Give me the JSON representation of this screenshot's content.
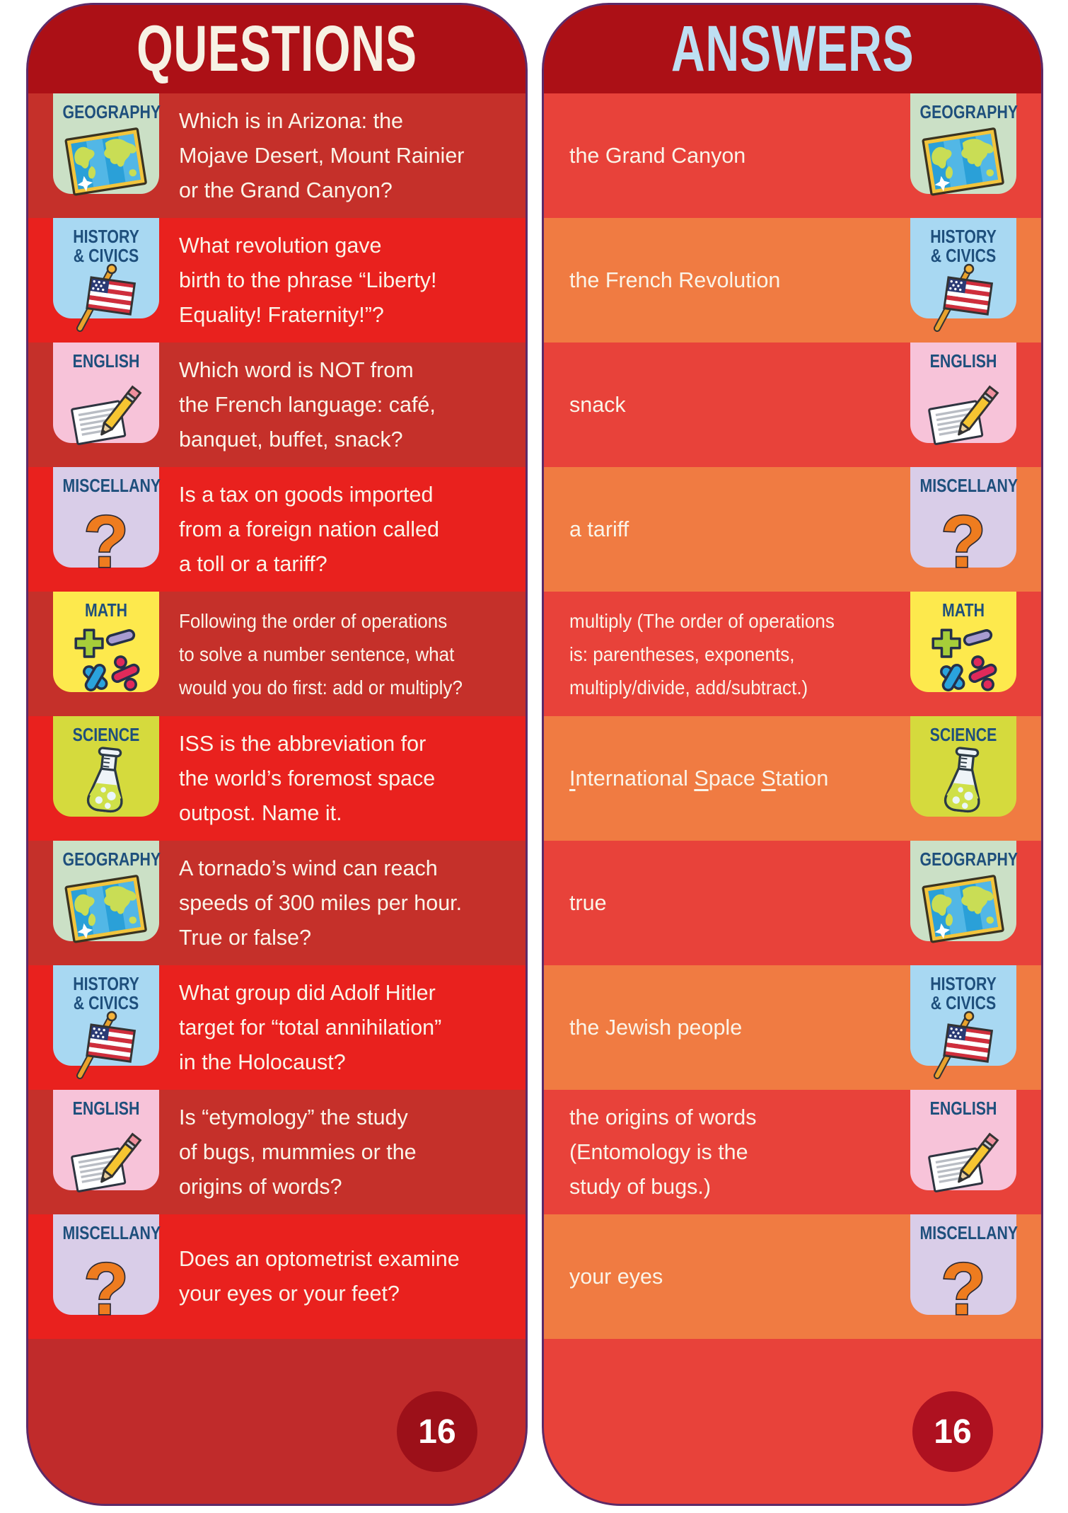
{
  "colors": {
    "header_bg": "#ac1016",
    "questions_title": "#f7f1e4",
    "answers_title": "#bedff2",
    "left_row_brick": "#c5302a",
    "left_row_red": "#e9211e",
    "right_row_red": "#e8423a",
    "right_row_orange": "#f07b42",
    "card_outline": "#5d2a68",
    "body_text": "#faf4e8",
    "tile_label": "#1e4f7c",
    "tile_geography": "#cbe0c6",
    "tile_history": "#a8d8f2",
    "tile_english": "#f7c3d9",
    "tile_miscellany": "#d9cde8",
    "tile_math": "#fde94d",
    "tile_science": "#d5da3d"
  },
  "questions": {
    "title": "QUESTIONS",
    "page_number": "16",
    "rows": [
      {
        "icon": "map-icon",
        "label": "GEOGRAPHY",
        "text": "Which is in Arizona: the\nMojave Desert, Mount Rainier\nor the Grand Canyon?"
      },
      {
        "icon": "us-flag-icon",
        "label": "HISTORY\n& CIVICS",
        "text": "What revolution gave\nbirth to the phrase “Liberty!\nEquality! Fraternity!”?"
      },
      {
        "icon": "paper-pencil-icon",
        "label": "ENGLISH",
        "text": "Which word is NOT from\nthe French language: café,\nbanquet, buffet, snack?"
      },
      {
        "icon": "question-mark-icon",
        "label": "MISCELLANY",
        "text": "Is a tax on goods imported\nfrom a foreign nation called\na toll or a tariff?"
      },
      {
        "icon": "math-symbols-icon",
        "label": "MATH",
        "text": "Following the order of operations\nto solve a number sentence, what\nwould you do first: add or multiply?"
      },
      {
        "icon": "flask-icon",
        "label": "SCIENCE",
        "text": "ISS is the abbreviation for\nthe world’s foremost space\noutpost. Name it."
      },
      {
        "icon": "map-icon",
        "label": "GEOGRAPHY",
        "text": "A tornado’s wind can reach\nspeeds of 300 miles per hour.\nTrue or false?"
      },
      {
        "icon": "us-flag-icon",
        "label": "HISTORY\n& CIVICS",
        "text": "What group did Adolf Hitler\ntarget for “total annihilation”\nin the Holocaust?"
      },
      {
        "icon": "paper-pencil-icon",
        "label": "ENGLISH",
        "text": "Is “etymology” the study\nof bugs, mummies or the\norigins of words?"
      },
      {
        "icon": "question-mark-icon",
        "label": "MISCELLANY",
        "text": "Does an optometrist examine\nyour eyes or your feet?"
      }
    ]
  },
  "answers": {
    "title": "ANSWERS",
    "page_number": "16",
    "rows": [
      {
        "icon": "map-icon",
        "label": "GEOGRAPHY",
        "text": "the Grand Canyon"
      },
      {
        "icon": "us-flag-icon",
        "label": "HISTORY\n& CIVICS",
        "text": "the French Revolution"
      },
      {
        "icon": "paper-pencil-icon",
        "label": "ENGLISH",
        "text": "snack"
      },
      {
        "icon": "question-mark-icon",
        "label": "MISCELLANY",
        "text": "a tariff"
      },
      {
        "icon": "math-symbols-icon",
        "label": "MATH",
        "text": "multiply (The order of operations\nis: parentheses, exponents,\nmultiply/divide, add/subtract.)"
      },
      {
        "icon": "flask-icon",
        "label": "SCIENCE",
        "segments": [
          [
            "I",
            true
          ],
          [
            "nternational ",
            false
          ],
          [
            "S",
            true
          ],
          [
            "pace ",
            false
          ],
          [
            "S",
            true
          ],
          [
            "tation",
            false
          ]
        ]
      },
      {
        "icon": "map-icon",
        "label": "GEOGRAPHY",
        "text": "true"
      },
      {
        "icon": "us-flag-icon",
        "label": "HISTORY\n& CIVICS",
        "text": "the Jewish people"
      },
      {
        "icon": "paper-pencil-icon",
        "label": "ENGLISH",
        "text": "the origins of words\n(Entomology is the\nstudy of bugs.)"
      },
      {
        "icon": "question-mark-icon",
        "label": "MISCELLANY",
        "text": "your eyes"
      }
    ]
  }
}
